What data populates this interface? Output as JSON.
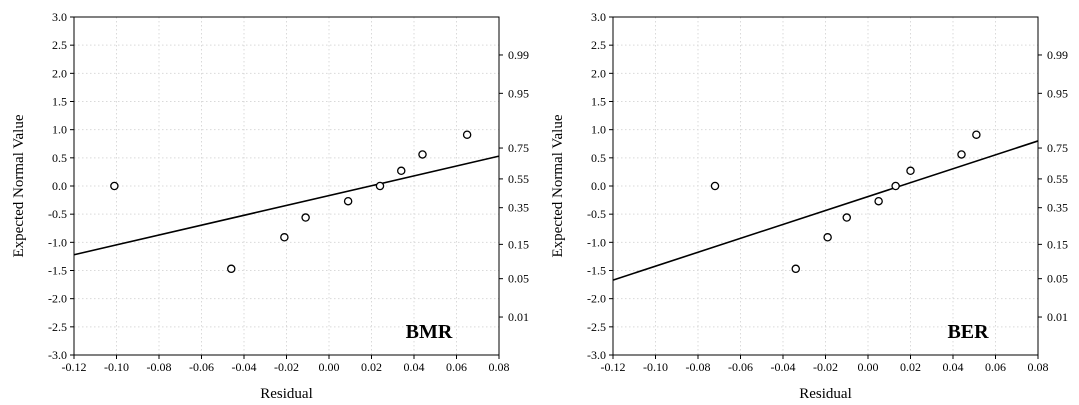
{
  "chart_data": [
    {
      "type": "scatter",
      "panel_label": "BMR",
      "xlabel": "Residual",
      "ylabel": "Expected Normal Value",
      "xlim": [
        -0.12,
        0.08
      ],
      "ylim": [
        -3.0,
        3.0
      ],
      "x_ticks": [
        "-0.12",
        "-0.10",
        "-0.08",
        "-0.06",
        "-0.04",
        "-0.02",
        "0.00",
        "0.02",
        "0.04",
        "0.06",
        "0.08"
      ],
      "y_ticks": [
        "-3.0",
        "-2.5",
        "-2.0",
        "-1.5",
        "-1.0",
        "-0.5",
        "0.0",
        "0.5",
        "1.0",
        "1.5",
        "2.0",
        "2.5",
        "3.0"
      ],
      "right_axis_probabilities": [
        {
          "label": "0.01",
          "z": -2.326
        },
        {
          "label": "0.05",
          "z": -1.645
        },
        {
          "label": "0.15",
          "z": -1.036
        },
        {
          "label": "0.35",
          "z": -0.385
        },
        {
          "label": "0.55",
          "z": 0.126
        },
        {
          "label": "0.75",
          "z": 0.674
        },
        {
          "label": "0.95",
          "z": 1.645
        },
        {
          "label": "0.99",
          "z": 2.326
        }
      ],
      "grid": true,
      "points": [
        {
          "x": -0.101,
          "y": 0.0
        },
        {
          "x": -0.046,
          "y": -1.47
        },
        {
          "x": -0.021,
          "y": -0.91
        },
        {
          "x": -0.011,
          "y": -0.56
        },
        {
          "x": 0.009,
          "y": -0.27
        },
        {
          "x": 0.024,
          "y": 0.0
        },
        {
          "x": 0.034,
          "y": 0.27
        },
        {
          "x": 0.044,
          "y": 0.56
        },
        {
          "x": 0.065,
          "y": 0.91
        }
      ],
      "fit_line": {
        "x": [
          -0.12,
          0.08
        ],
        "y": [
          -1.22,
          0.53
        ]
      }
    },
    {
      "type": "scatter",
      "panel_label": "BER",
      "xlabel": "Residual",
      "ylabel": "Expected Normal Value",
      "xlim": [
        -0.12,
        0.08
      ],
      "ylim": [
        -3.0,
        3.0
      ],
      "x_ticks": [
        "-0.12",
        "-0.10",
        "-0.08",
        "-0.06",
        "-0.04",
        "-0.02",
        "0.00",
        "0.02",
        "0.04",
        "0.06",
        "0.08"
      ],
      "y_ticks": [
        "-3.0",
        "-2.5",
        "-2.0",
        "-1.5",
        "-1.0",
        "-0.5",
        "0.0",
        "0.5",
        "1.0",
        "1.5",
        "2.0",
        "2.5",
        "3.0"
      ],
      "right_axis_probabilities": [
        {
          "label": "0.01",
          "z": -2.326
        },
        {
          "label": "0.05",
          "z": -1.645
        },
        {
          "label": "0.15",
          "z": -1.036
        },
        {
          "label": "0.35",
          "z": -0.385
        },
        {
          "label": "0.55",
          "z": 0.126
        },
        {
          "label": "0.75",
          "z": 0.674
        },
        {
          "label": "0.95",
          "z": 1.645
        },
        {
          "label": "0.99",
          "z": 2.326
        }
      ],
      "grid": true,
      "points": [
        {
          "x": -0.072,
          "y": 0.0
        },
        {
          "x": -0.034,
          "y": -1.47
        },
        {
          "x": -0.019,
          "y": -0.91
        },
        {
          "x": -0.01,
          "y": -0.56
        },
        {
          "x": 0.005,
          "y": -0.27
        },
        {
          "x": 0.013,
          "y": 0.0
        },
        {
          "x": 0.02,
          "y": 0.27
        },
        {
          "x": 0.044,
          "y": 0.56
        },
        {
          "x": 0.051,
          "y": 0.91
        }
      ],
      "fit_line": {
        "x": [
          -0.12,
          0.08
        ],
        "y": [
          -1.67,
          0.8
        ]
      }
    }
  ]
}
